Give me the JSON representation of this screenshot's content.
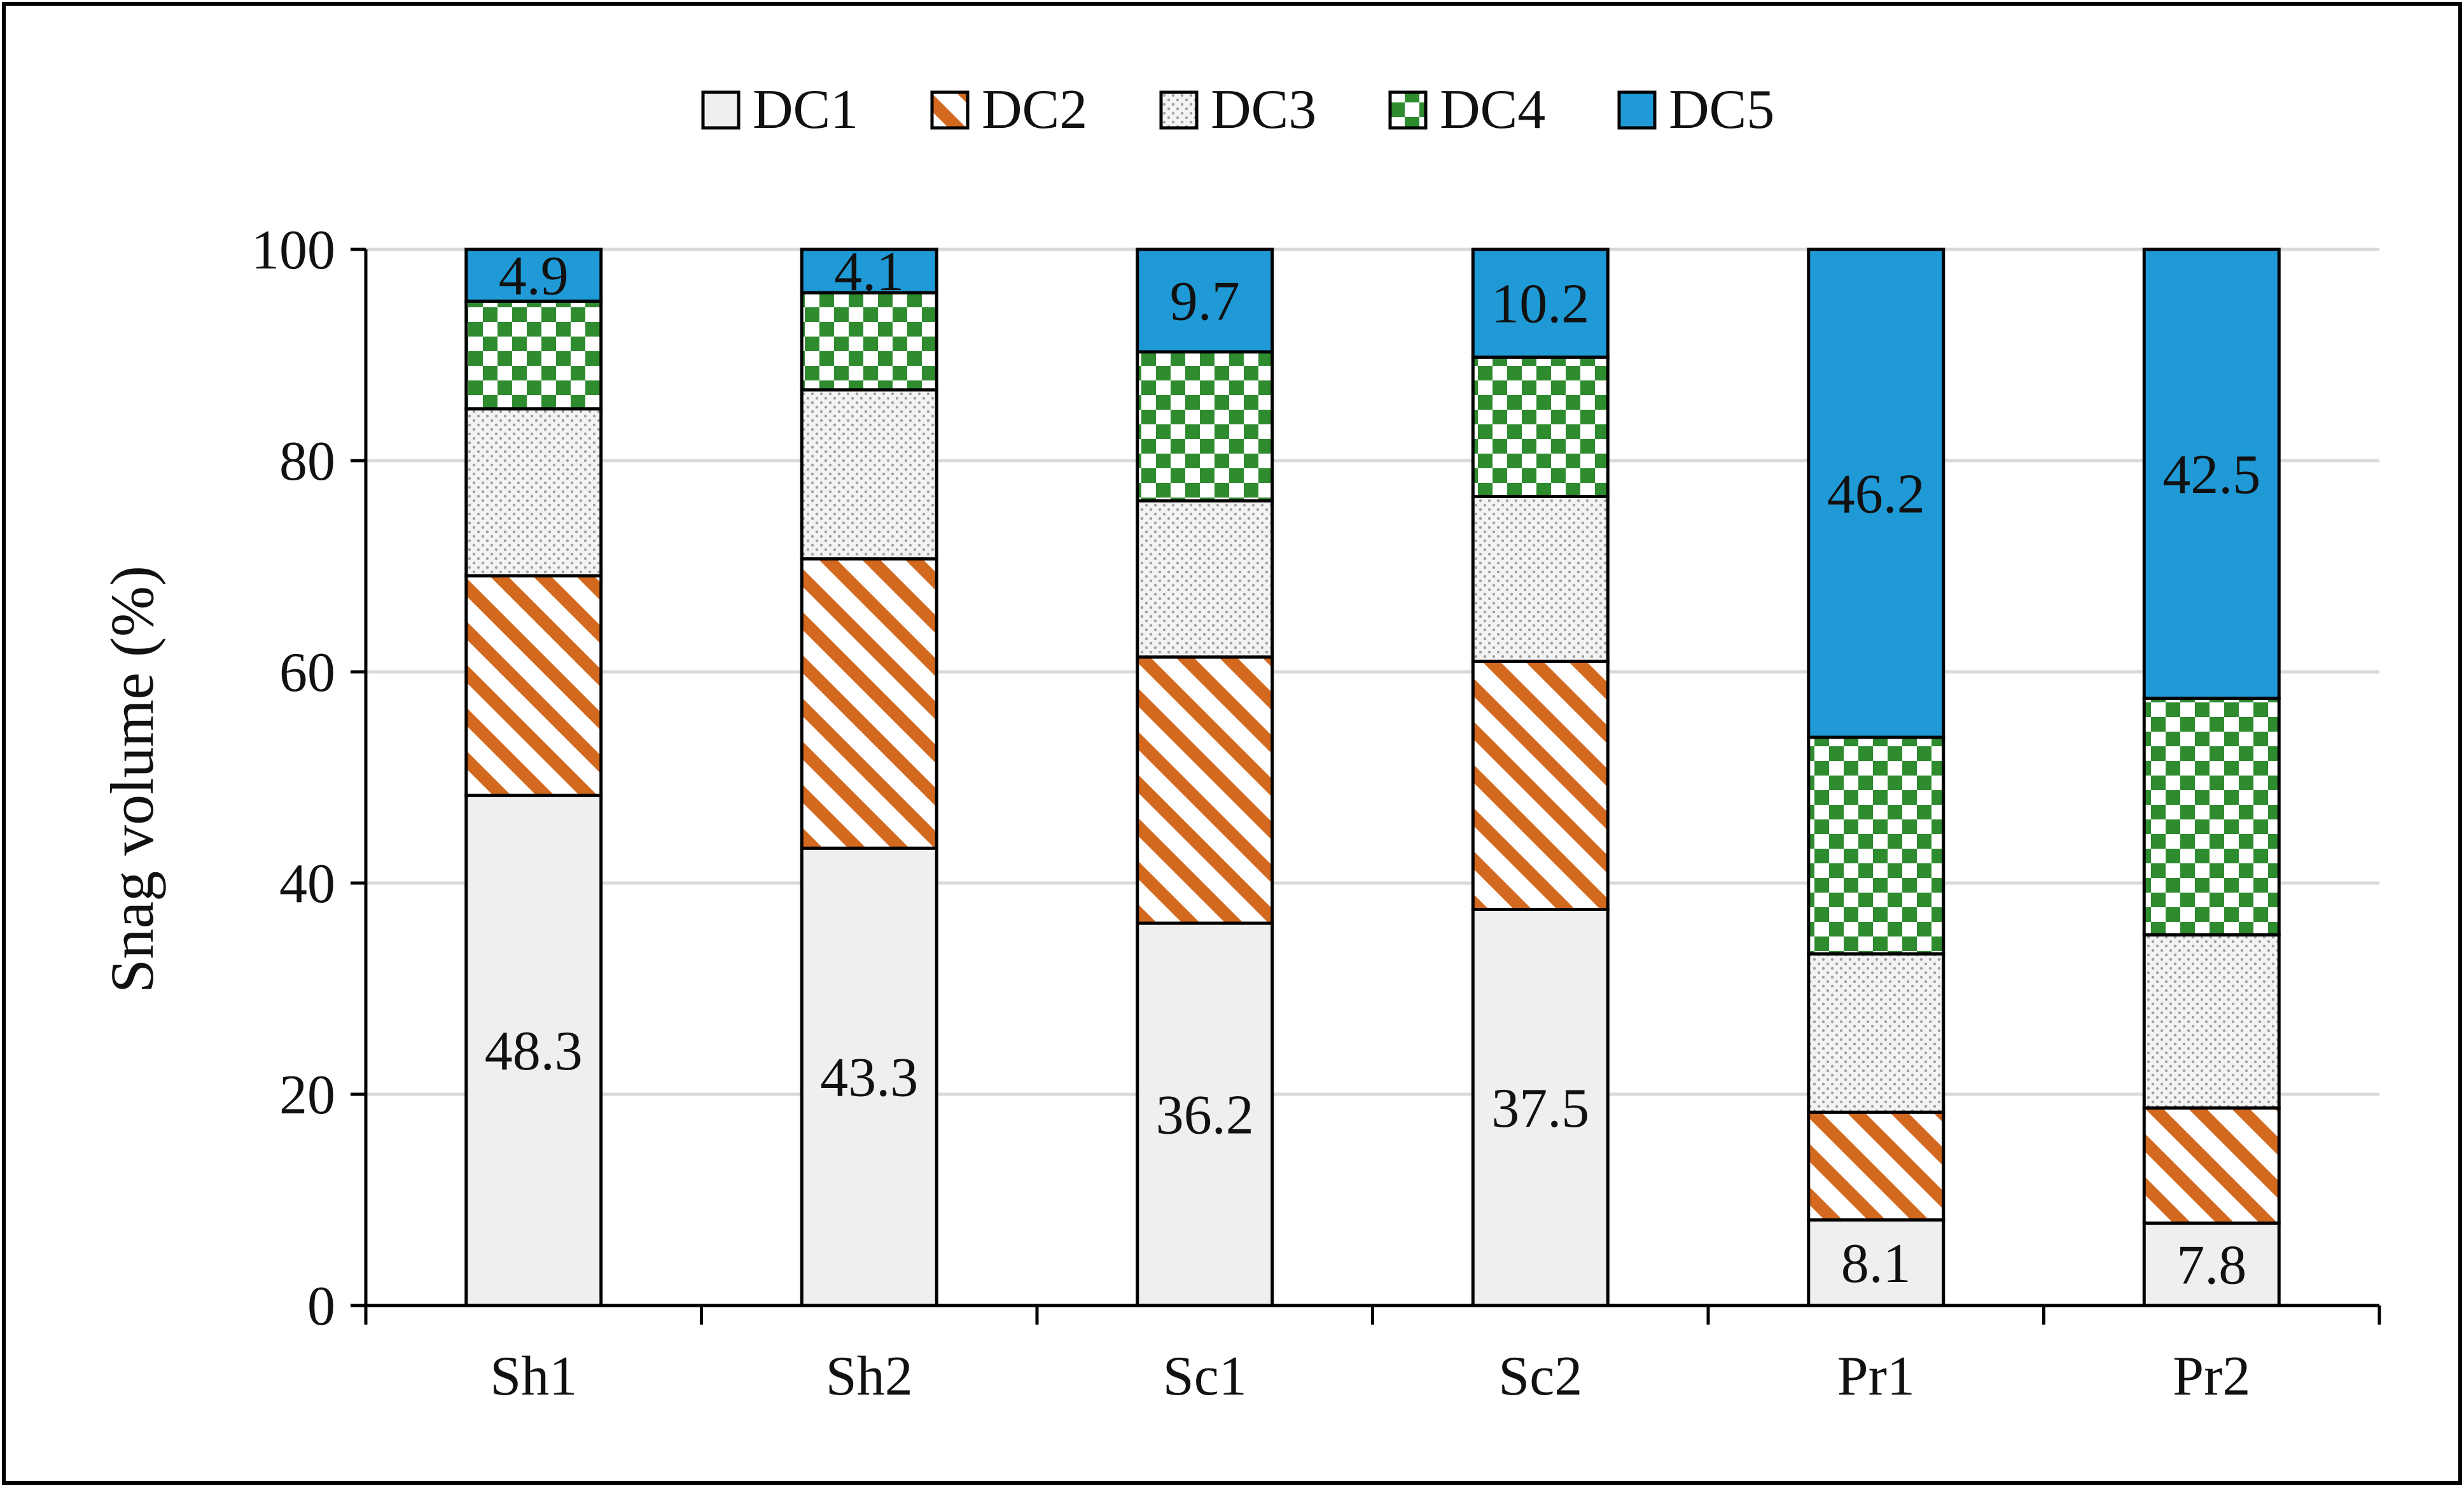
{
  "chart_data": {
    "type": "bar",
    "stacked": true,
    "title": "",
    "xlabel": "",
    "ylabel": "Snag volume (%)",
    "ylim": [
      0,
      100
    ],
    "yticks": [
      0,
      20,
      40,
      60,
      80,
      100
    ],
    "grid": true,
    "legend_position": "top",
    "categories": [
      "Sh1",
      "Sh2",
      "Sc1",
      "Sc2",
      "Pr1",
      "Pr2"
    ],
    "series": [
      {
        "name": "DC1",
        "pattern": "solid",
        "color": "#efefef",
        "values": [
          48.3,
          43.3,
          36.2,
          37.5,
          8.1,
          7.8
        ]
      },
      {
        "name": "DC2",
        "pattern": "diagonal-stripes",
        "color": "#d2691e",
        "values": [
          20.8,
          27.4,
          25.2,
          23.5,
          10.2,
          10.9
        ]
      },
      {
        "name": "DC3",
        "pattern": "dots",
        "color": "#a0a0a0",
        "values": [
          15.8,
          16.0,
          14.8,
          15.6,
          15.0,
          16.4
        ]
      },
      {
        "name": "DC4",
        "pattern": "checkerboard",
        "color": "#2e8b2e",
        "values": [
          10.2,
          9.2,
          14.1,
          13.2,
          20.5,
          22.4
        ]
      },
      {
        "name": "DC5",
        "pattern": "solid",
        "color": "#1f9ad6",
        "values": [
          4.9,
          4.1,
          9.7,
          10.2,
          46.2,
          42.5
        ]
      }
    ],
    "data_labels": [
      {
        "series": "DC1",
        "labels": [
          "48.3",
          "43.3",
          "36.2",
          "37.5",
          "8.1",
          "7.8"
        ]
      },
      {
        "series": "DC5",
        "labels": [
          "4.9",
          "4.1",
          "9.7",
          "10.2",
          "46.2",
          "42.5"
        ]
      }
    ]
  }
}
